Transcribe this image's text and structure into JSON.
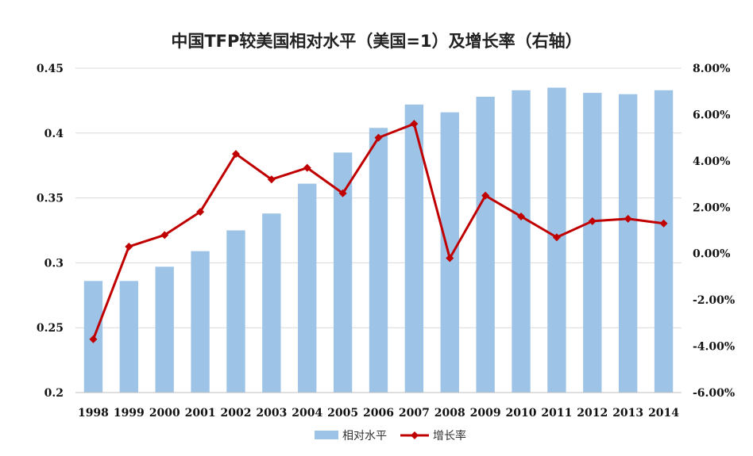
{
  "chart_data": {
    "type": "bar",
    "title": "中国TFP较美国相对水平（美国=1）及增长率（右轴）",
    "categories": [
      "1998",
      "1999",
      "2000",
      "2001",
      "2002",
      "2003",
      "2004",
      "2005",
      "2006",
      "2007",
      "2008",
      "2009",
      "2010",
      "2011",
      "2012",
      "2013",
      "2014"
    ],
    "series": [
      {
        "name": "相对水平",
        "type": "bar",
        "axis": "left",
        "color": "#9dc3e6",
        "values": [
          0.286,
          0.286,
          0.297,
          0.309,
          0.325,
          0.338,
          0.361,
          0.385,
          0.404,
          0.422,
          0.416,
          0.428,
          0.433,
          0.435,
          0.431,
          0.43,
          0.433
        ]
      },
      {
        "name": "增长率",
        "type": "line",
        "axis": "right",
        "color": "#c00000",
        "values": [
          -3.7,
          0.3,
          0.8,
          1.8,
          4.3,
          3.2,
          3.7,
          2.6,
          5.0,
          5.6,
          -0.2,
          2.5,
          1.6,
          0.7,
          1.4,
          1.5,
          1.3
        ]
      }
    ],
    "left_axis": {
      "ylim": [
        0.2,
        0.45
      ],
      "ticks": [
        "0.2",
        "0.25",
        "0.3",
        "0.35",
        "0.4",
        "0.45"
      ]
    },
    "right_axis": {
      "ylim": [
        -6,
        8
      ],
      "ticks": [
        "-6.00%",
        "-4.00%",
        "-2.00%",
        "0.00%",
        "2.00%",
        "4.00%",
        "6.00%",
        "8.00%"
      ]
    },
    "grid": true,
    "legend": "bottom"
  }
}
